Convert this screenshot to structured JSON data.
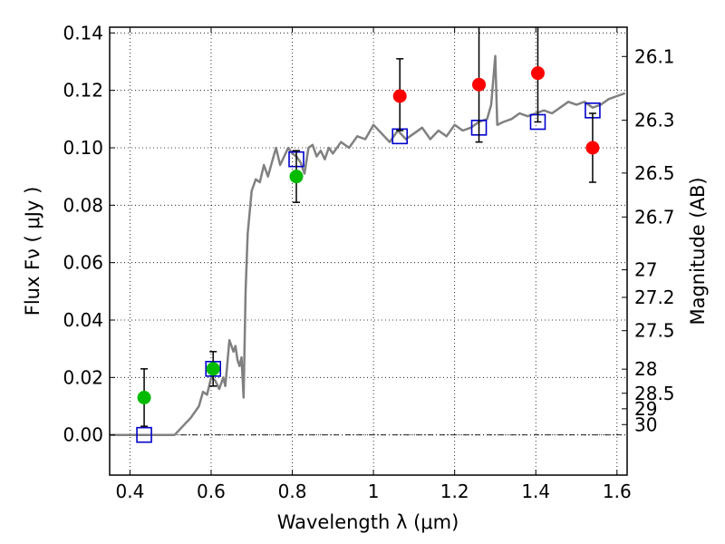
{
  "chart_data": {
    "type": "scatter",
    "xlabel": "Wavelength  λ (μm)",
    "ylabel": "Flux  Fν  ( μJy )",
    "y2label": "Magnitude (AB)",
    "xlim": [
      0.35,
      1.625
    ],
    "ylim": [
      -0.014,
      0.142
    ],
    "grid": true,
    "x_ticks": [
      0.4,
      0.6,
      0.8,
      1.0,
      1.2,
      1.4,
      1.6
    ],
    "x_tick_labels": [
      "0.4",
      "0.6",
      "0.8",
      "1",
      "1.2",
      "1.4",
      "1.6"
    ],
    "y_ticks": [
      0.0,
      0.02,
      0.04,
      0.06,
      0.08,
      0.1,
      0.12,
      0.14
    ],
    "y_tick_labels": [
      "0.00",
      "0.02",
      "0.04",
      "0.06",
      "0.08",
      "0.10",
      "0.12",
      "0.14"
    ],
    "y2_ticks": [
      {
        "label": "26.1",
        "flux": 0.1318
      },
      {
        "label": "26.3",
        "flux": 0.1096
      },
      {
        "label": "26.5",
        "flux": 0.0912
      },
      {
        "label": "26.7",
        "flux": 0.0759
      },
      {
        "label": "27",
        "flux": 0.0575
      },
      {
        "label": "27.2",
        "flux": 0.0479
      },
      {
        "label": "27.5",
        "flux": 0.0363
      },
      {
        "label": "28",
        "flux": 0.0229
      },
      {
        "label": "28.5",
        "flux": 0.0145
      },
      {
        "label": "29",
        "flux": 0.0091
      },
      {
        "label": "30",
        "flux": 0.0036
      }
    ],
    "series": [
      {
        "kind": "line",
        "color": "#808080",
        "points": [
          [
            0.35,
            0.0
          ],
          [
            0.5,
            0.0
          ],
          [
            0.51,
            0.0
          ],
          [
            0.55,
            0.006
          ],
          [
            0.57,
            0.01
          ],
          [
            0.58,
            0.015
          ],
          [
            0.59,
            0.014
          ],
          [
            0.6,
            0.02
          ],
          [
            0.61,
            0.019
          ],
          [
            0.62,
            0.016
          ],
          [
            0.63,
            0.02
          ],
          [
            0.635,
            0.017
          ],
          [
            0.64,
            0.025
          ],
          [
            0.645,
            0.033
          ],
          [
            0.65,
            0.031
          ],
          [
            0.655,
            0.029
          ],
          [
            0.66,
            0.031
          ],
          [
            0.665,
            0.026
          ],
          [
            0.67,
            0.024
          ],
          [
            0.675,
            0.027
          ],
          [
            0.68,
            0.013
          ],
          [
            0.685,
            0.05
          ],
          [
            0.69,
            0.07
          ],
          [
            0.7,
            0.085
          ],
          [
            0.71,
            0.089
          ],
          [
            0.72,
            0.088
          ],
          [
            0.73,
            0.094
          ],
          [
            0.74,
            0.09
          ],
          [
            0.75,
            0.095
          ],
          [
            0.76,
            0.1
          ],
          [
            0.77,
            0.094
          ],
          [
            0.78,
            0.097
          ],
          [
            0.79,
            0.1
          ],
          [
            0.8,
            0.098
          ],
          [
            0.81,
            0.097
          ],
          [
            0.82,
            0.095
          ],
          [
            0.83,
            0.091
          ],
          [
            0.84,
            0.1
          ],
          [
            0.85,
            0.101
          ],
          [
            0.86,
            0.097
          ],
          [
            0.87,
            0.099
          ],
          [
            0.88,
            0.096
          ],
          [
            0.89,
            0.1
          ],
          [
            0.9,
            0.098
          ],
          [
            0.92,
            0.102
          ],
          [
            0.94,
            0.1
          ],
          [
            0.96,
            0.104
          ],
          [
            0.98,
            0.103
          ],
          [
            1.0,
            0.108
          ],
          [
            1.02,
            0.105
          ],
          [
            1.04,
            0.102
          ],
          [
            1.06,
            0.106
          ],
          [
            1.08,
            0.103
          ],
          [
            1.1,
            0.105
          ],
          [
            1.12,
            0.107
          ],
          [
            1.14,
            0.103
          ],
          [
            1.16,
            0.106
          ],
          [
            1.18,
            0.104
          ],
          [
            1.2,
            0.108
          ],
          [
            1.22,
            0.106
          ],
          [
            1.24,
            0.107
          ],
          [
            1.26,
            0.109
          ],
          [
            1.28,
            0.11
          ],
          [
            1.29,
            0.115
          ],
          [
            1.3,
            0.132
          ],
          [
            1.305,
            0.108
          ],
          [
            1.32,
            0.109
          ],
          [
            1.34,
            0.11
          ],
          [
            1.36,
            0.112
          ],
          [
            1.38,
            0.111
          ],
          [
            1.4,
            0.112
          ],
          [
            1.42,
            0.113
          ],
          [
            1.44,
            0.112
          ],
          [
            1.46,
            0.114
          ],
          [
            1.48,
            0.116
          ],
          [
            1.5,
            0.115
          ],
          [
            1.52,
            0.116
          ],
          [
            1.54,
            0.114
          ],
          [
            1.56,
            0.115
          ],
          [
            1.58,
            0.117
          ],
          [
            1.6,
            0.118
          ],
          [
            1.62,
            0.119
          ]
        ]
      },
      {
        "kind": "squares",
        "color": "#0000cc",
        "points": [
          [
            0.435,
            0.0
          ],
          [
            0.605,
            0.023
          ],
          [
            0.81,
            0.096
          ],
          [
            1.065,
            0.104
          ],
          [
            1.26,
            0.107
          ],
          [
            1.405,
            0.109
          ],
          [
            1.54,
            0.113
          ]
        ]
      },
      {
        "kind": "circles",
        "color": "#00bb00",
        "points": [
          {
            "x": 0.435,
            "y": 0.013,
            "lo": 0.003,
            "hi": 0.023
          },
          {
            "x": 0.605,
            "y": 0.023,
            "lo": 0.017,
            "hi": 0.029
          },
          {
            "x": 0.81,
            "y": 0.09,
            "lo": 0.081,
            "hi": 0.099
          }
        ]
      },
      {
        "kind": "circles",
        "color": "#ff0000",
        "points": [
          {
            "x": 1.065,
            "y": 0.118,
            "lo": 0.106,
            "hi": 0.131
          },
          {
            "x": 1.26,
            "y": 0.122,
            "lo": 0.102,
            "hi": 0.145
          },
          {
            "x": 1.405,
            "y": 0.126,
            "lo": 0.109,
            "hi": 0.145
          },
          {
            "x": 1.54,
            "y": 0.1,
            "lo": 0.088,
            "hi": 0.112
          }
        ]
      }
    ]
  }
}
